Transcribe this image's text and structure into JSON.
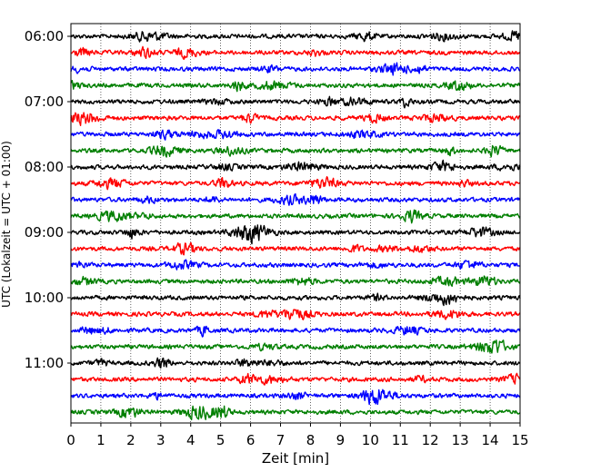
{
  "chart_data": {
    "type": "line",
    "title": "",
    "xlabel": "Zeit  [min]",
    "ylabel": "UTC (Lokalzeit = UTC + 01:00)",
    "xlim": [
      0,
      15
    ],
    "x_ticks": [
      "0",
      "1",
      "2",
      "3",
      "4",
      "5",
      "6",
      "7",
      "8",
      "9",
      "10",
      "11",
      "12",
      "13",
      "14",
      "15"
    ],
    "y_ticks": [
      "06:00",
      "07:00",
      "08:00",
      "09:00",
      "10:00",
      "11:00"
    ],
    "grid": "vertical dotted at each minute",
    "trace_colors": [
      "#000000",
      "#ff0000",
      "#0000ff",
      "#007f00"
    ],
    "traces": [
      {
        "start": "06:00",
        "color": "#000000"
      },
      {
        "start": "06:15",
        "color": "#ff0000"
      },
      {
        "start": "06:30",
        "color": "#0000ff"
      },
      {
        "start": "06:45",
        "color": "#007f00"
      },
      {
        "start": "07:00",
        "color": "#000000"
      },
      {
        "start": "07:15",
        "color": "#ff0000"
      },
      {
        "start": "07:30",
        "color": "#0000ff"
      },
      {
        "start": "07:45",
        "color": "#007f00"
      },
      {
        "start": "08:00",
        "color": "#000000"
      },
      {
        "start": "08:15",
        "color": "#ff0000"
      },
      {
        "start": "08:30",
        "color": "#0000ff"
      },
      {
        "start": "08:45",
        "color": "#007f00"
      },
      {
        "start": "09:00",
        "color": "#000000"
      },
      {
        "start": "09:15",
        "color": "#ff0000"
      },
      {
        "start": "09:30",
        "color": "#0000ff"
      },
      {
        "start": "09:45",
        "color": "#007f00"
      },
      {
        "start": "10:00",
        "color": "#000000"
      },
      {
        "start": "10:15",
        "color": "#ff0000"
      },
      {
        "start": "10:30",
        "color": "#0000ff"
      },
      {
        "start": "10:45",
        "color": "#007f00"
      },
      {
        "start": "11:00",
        "color": "#000000"
      },
      {
        "start": "11:15",
        "color": "#ff0000"
      },
      {
        "start": "11:30",
        "color": "#0000ff"
      },
      {
        "start": "11:45",
        "color": "#007f00"
      }
    ]
  }
}
